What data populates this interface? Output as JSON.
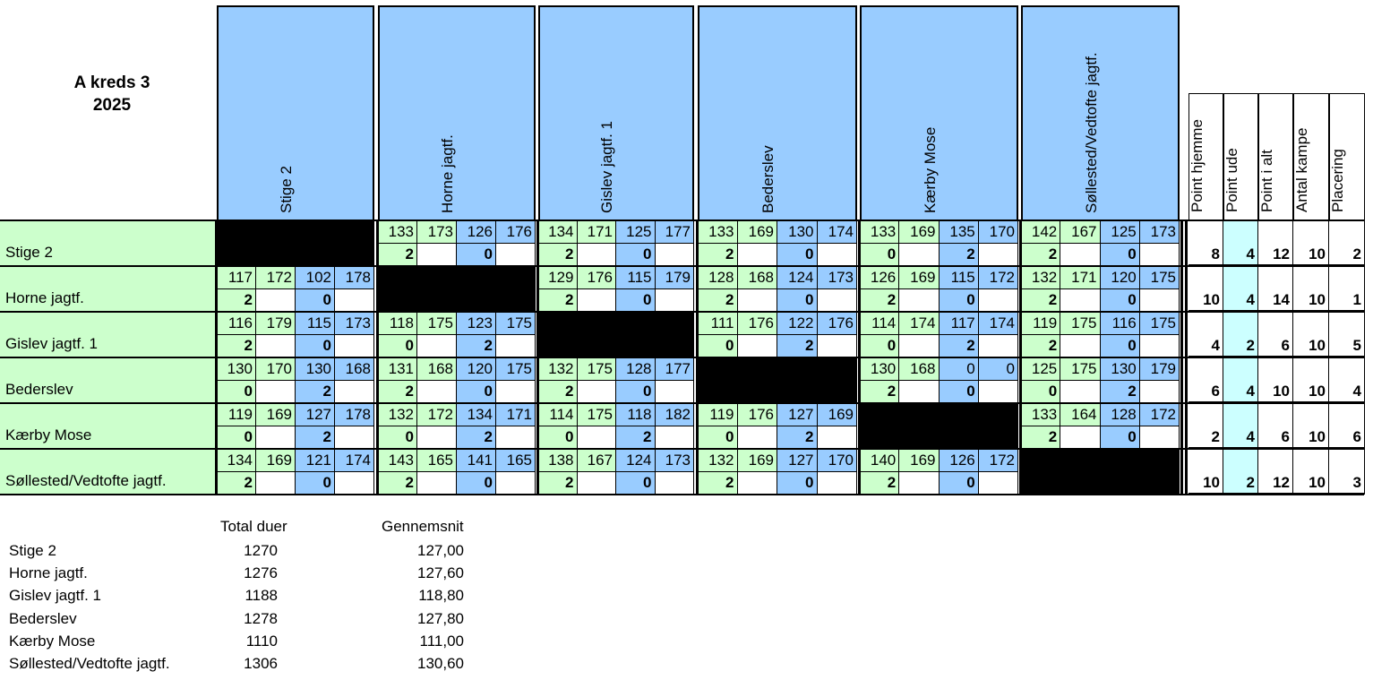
{
  "title_line1": "A kreds 3",
  "title_line2": "2025",
  "teams": [
    "Stige 2",
    "Horne jagtf.",
    "Gislev jagtf. 1",
    "Bederslev",
    "Kærby Mose",
    "Søllested/Vedtofte jagtf."
  ],
  "stat_headers": [
    "Point hjemme",
    "Point ude",
    "Point i alt",
    "Antal kampe",
    "Placering"
  ],
  "matches": [
    [
      null,
      {
        "s": [
          133,
          173,
          126,
          176
        ],
        "p": [
          2,
          0
        ]
      },
      {
        "s": [
          134,
          171,
          125,
          177
        ],
        "p": [
          2,
          0
        ]
      },
      {
        "s": [
          133,
          169,
          130,
          174
        ],
        "p": [
          2,
          0
        ]
      },
      {
        "s": [
          133,
          169,
          135,
          170
        ],
        "p": [
          0,
          2
        ]
      },
      {
        "s": [
          142,
          167,
          125,
          173
        ],
        "p": [
          2,
          0
        ]
      }
    ],
    [
      {
        "s": [
          117,
          172,
          102,
          178
        ],
        "p": [
          2,
          0
        ]
      },
      null,
      {
        "s": [
          129,
          176,
          115,
          179
        ],
        "p": [
          2,
          0
        ]
      },
      {
        "s": [
          128,
          168,
          124,
          173
        ],
        "p": [
          2,
          0
        ]
      },
      {
        "s": [
          126,
          169,
          115,
          172
        ],
        "p": [
          2,
          0
        ]
      },
      {
        "s": [
          132,
          171,
          120,
          175
        ],
        "p": [
          2,
          0
        ]
      }
    ],
    [
      {
        "s": [
          116,
          179,
          115,
          173
        ],
        "p": [
          2,
          0
        ]
      },
      {
        "s": [
          118,
          175,
          123,
          175
        ],
        "p": [
          0,
          2
        ]
      },
      null,
      {
        "s": [
          111,
          176,
          122,
          176
        ],
        "p": [
          0,
          2
        ]
      },
      {
        "s": [
          114,
          174,
          117,
          174
        ],
        "p": [
          0,
          2
        ]
      },
      {
        "s": [
          119,
          175,
          116,
          175
        ],
        "p": [
          2,
          0
        ]
      }
    ],
    [
      {
        "s": [
          130,
          170,
          130,
          168
        ],
        "p": [
          0,
          2
        ]
      },
      {
        "s": [
          131,
          168,
          120,
          175
        ],
        "p": [
          2,
          0
        ]
      },
      {
        "s": [
          132,
          175,
          128,
          177
        ],
        "p": [
          2,
          0
        ]
      },
      null,
      {
        "s": [
          130,
          168,
          0,
          0
        ],
        "p": [
          2,
          0
        ]
      },
      {
        "s": [
          125,
          175,
          130,
          179
        ],
        "p": [
          0,
          2
        ]
      }
    ],
    [
      {
        "s": [
          119,
          169,
          127,
          178
        ],
        "p": [
          0,
          2
        ]
      },
      {
        "s": [
          132,
          172,
          134,
          171
        ],
        "p": [
          0,
          2
        ]
      },
      {
        "s": [
          114,
          175,
          118,
          182
        ],
        "p": [
          0,
          2
        ]
      },
      {
        "s": [
          119,
          176,
          127,
          169
        ],
        "p": [
          0,
          2
        ]
      },
      null,
      {
        "s": [
          133,
          164,
          128,
          172
        ],
        "p": [
          2,
          0
        ]
      }
    ],
    [
      {
        "s": [
          134,
          169,
          121,
          174
        ],
        "p": [
          2,
          0
        ]
      },
      {
        "s": [
          143,
          165,
          141,
          165
        ],
        "p": [
          2,
          0
        ]
      },
      {
        "s": [
          138,
          167,
          124,
          173
        ],
        "p": [
          2,
          0
        ]
      },
      {
        "s": [
          132,
          169,
          127,
          170
        ],
        "p": [
          2,
          0
        ]
      },
      {
        "s": [
          140,
          169,
          126,
          172
        ],
        "p": [
          2,
          0
        ]
      },
      null
    ]
  ],
  "stats": [
    [
      8,
      4,
      12,
      10,
      2
    ],
    [
      10,
      4,
      14,
      10,
      1
    ],
    [
      4,
      2,
      6,
      10,
      5
    ],
    [
      6,
      4,
      10,
      10,
      4
    ],
    [
      2,
      4,
      6,
      10,
      6
    ],
    [
      10,
      2,
      12,
      10,
      3
    ]
  ],
  "summary": {
    "header_total": "Total duer",
    "header_avg": "Gennemsnit",
    "rows": [
      {
        "name": "Stige 2",
        "total": "1270",
        "avg": "127,00"
      },
      {
        "name": "Horne jagtf.",
        "total": "1276",
        "avg": "127,60"
      },
      {
        "name": "Gislev jagtf. 1",
        "total": "1188",
        "avg": "118,80"
      },
      {
        "name": "Bederslev",
        "total": "1278",
        "avg": "127,80"
      },
      {
        "name": "Kærby Mose",
        "total": "1110",
        "avg": "111,00"
      },
      {
        "name": "Søllested/Vedtofte jagtf.",
        "total": "1306",
        "avg": "130,60"
      }
    ]
  },
  "colors": {
    "green": "#ccffcc",
    "blue": "#99ccff",
    "lightblue": "#ccffff",
    "black": "#000000"
  }
}
